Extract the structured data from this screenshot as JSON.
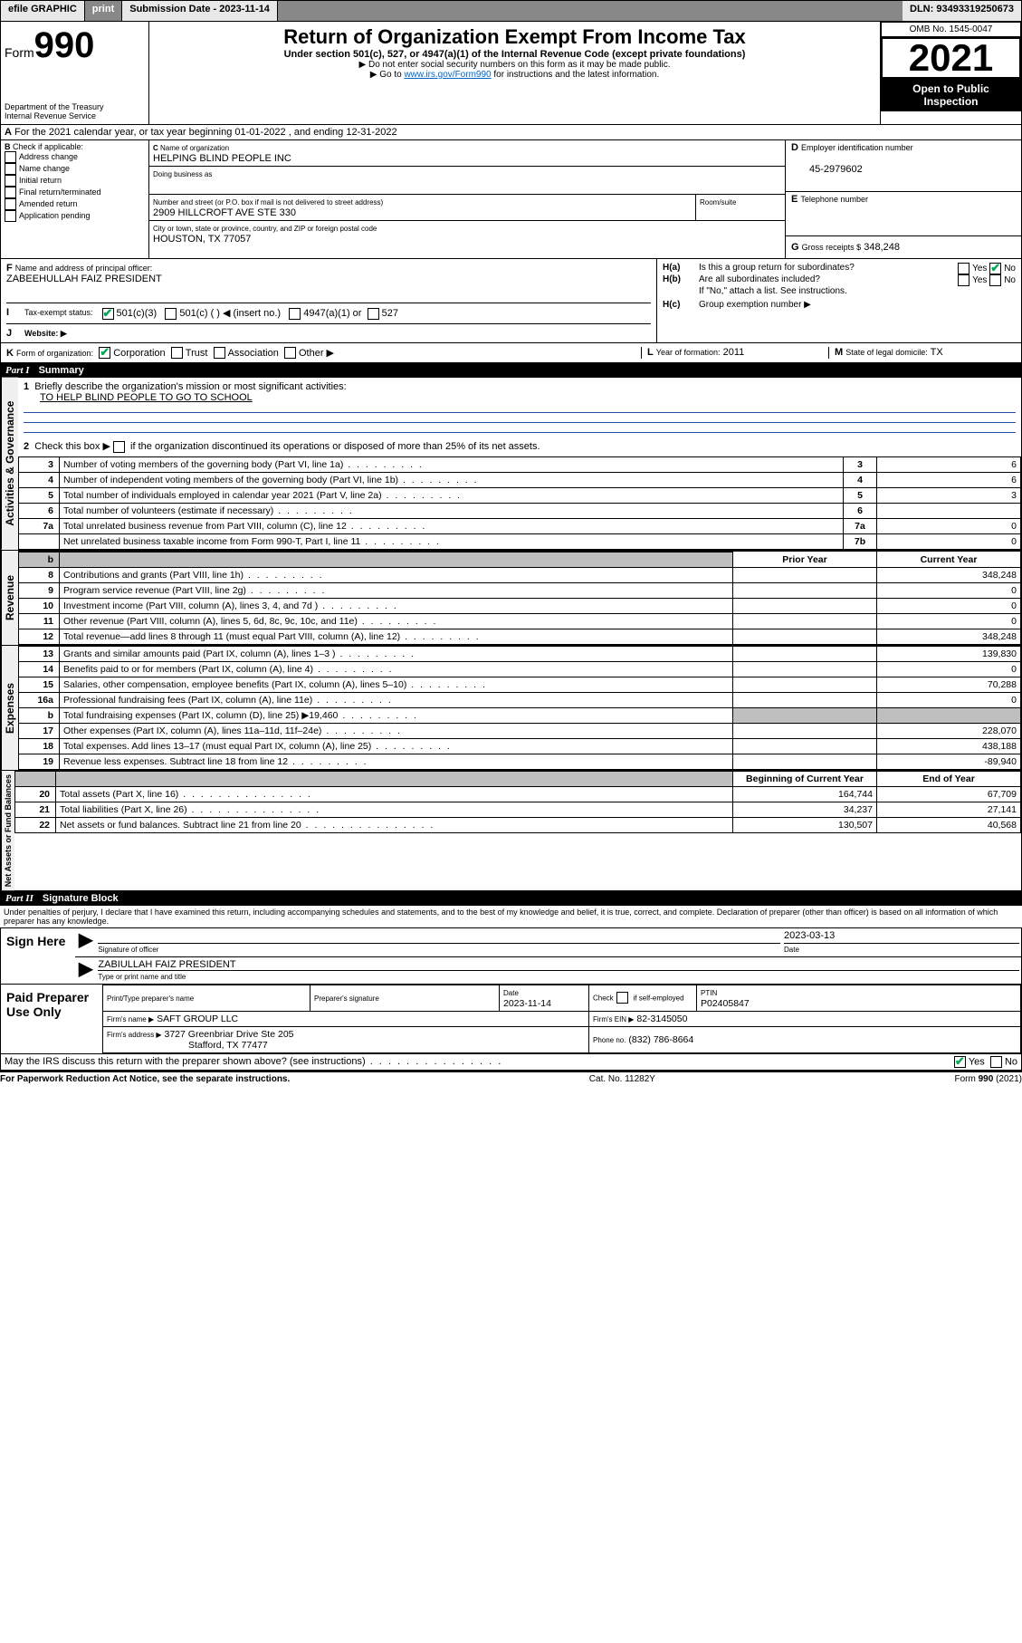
{
  "topbar": {
    "efile": "efile GRAPHIC",
    "print": "print",
    "sub_label": "Submission Date - 2023-11-14",
    "dln": "DLN: 93493319250673"
  },
  "header": {
    "form_word": "Form",
    "form_num": "990",
    "title": "Return of Organization Exempt From Income Tax",
    "subtitle": "Under section 501(c), 527, or 4947(a)(1) of the Internal Revenue Code (except private foundations)",
    "note1": "▶ Do not enter social security numbers on this form as it may be made public.",
    "note2_pre": "▶ Go to ",
    "note2_link": "www.irs.gov/Form990",
    "note2_post": " for instructions and the latest information.",
    "dept": "Department of the Treasury",
    "irs": "Internal Revenue Service",
    "omb": "OMB No. 1545-0047",
    "year": "2021",
    "open": "Open to Public Inspection"
  },
  "A": {
    "line": "For the 2021 calendar year, or tax year beginning 01-01-2022   , and ending 12-31-2022",
    "prefix": "A"
  },
  "B": {
    "label": "Check if applicable:",
    "prefix": "B",
    "items": [
      "Address change",
      "Name change",
      "Initial return",
      "Final return/terminated",
      "Amended return",
      "Application pending"
    ]
  },
  "C": {
    "name_label": "Name of organization",
    "name": "HELPING BLIND PEOPLE INC",
    "dba_label": "Doing business as",
    "addr_label": "Number and street (or P.O. box if mail is not delivered to street address)",
    "room_label": "Room/suite",
    "addr": "2909 HILLCROFT AVE STE 330",
    "city_label": "City or town, state or province, country, and ZIP or foreign postal code",
    "city": "HOUSTON, TX  77057",
    "prefix": "C"
  },
  "D": {
    "label": "Employer identification number",
    "value": "45-2979602",
    "prefix": "D"
  },
  "E": {
    "label": "Telephone number",
    "prefix": "E"
  },
  "G": {
    "label": "Gross receipts $",
    "value": "348,248",
    "prefix": "G"
  },
  "F": {
    "label": "Name and address of principal officer:",
    "value": "ZABEEHULLAH FAIZ PRESIDENT",
    "prefix": "F"
  },
  "H": {
    "a_label": "Is this a group return for subordinates?",
    "a_prefix": "H(a)",
    "b_label": "Are all subordinates included?",
    "b_prefix": "H(b)",
    "b_note": "If \"No,\" attach a list. See instructions.",
    "c_label": "Group exemption number ▶",
    "c_prefix": "H(c)",
    "yes": "Yes",
    "no": "No"
  },
  "I": {
    "label": "Tax-exempt status:",
    "prefix": "I",
    "opts": [
      "501(c)(3)",
      "501(c) (  ) ◀ (insert no.)",
      "4947(a)(1) or",
      "527"
    ]
  },
  "J": {
    "label": "Website: ▶",
    "prefix": "J"
  },
  "K": {
    "label": "Form of organization:",
    "prefix": "K",
    "opts": [
      "Corporation",
      "Trust",
      "Association",
      "Other ▶"
    ]
  },
  "L": {
    "label": "Year of formation:",
    "value": "2011",
    "prefix": "L"
  },
  "M": {
    "label": "State of legal domicile:",
    "value": "TX",
    "prefix": "M"
  },
  "part1": {
    "header_num": "Part I",
    "header_title": "Summary",
    "q1": "Briefly describe the organization's mission or most significant activities:",
    "q1_ans": "TO HELP BLIND PEOPLE TO GO TO SCHOOL",
    "q2": "Check this box ▶",
    "q2_tail": "if the organization discontinued its operations or disposed of more than 25% of its net assets.",
    "vert_gov": "Activities & Governance",
    "vert_rev": "Revenue",
    "vert_exp": "Expenses",
    "vert_net": "Net Assets or Fund Balances",
    "col_prior": "Prior Year",
    "col_current": "Current Year",
    "col_begin": "Beginning of Current Year",
    "col_end": "End of Year"
  },
  "gov_rows": [
    {
      "n": "3",
      "t": "Number of voting members of the governing body (Part VI, line 1a)",
      "box": "3",
      "v": "6"
    },
    {
      "n": "4",
      "t": "Number of independent voting members of the governing body (Part VI, line 1b)",
      "box": "4",
      "v": "6"
    },
    {
      "n": "5",
      "t": "Total number of individuals employed in calendar year 2021 (Part V, line 2a)",
      "box": "5",
      "v": "3"
    },
    {
      "n": "6",
      "t": "Total number of volunteers (estimate if necessary)",
      "box": "6",
      "v": ""
    },
    {
      "n": "7a",
      "t": "Total unrelated business revenue from Part VIII, column (C), line 12",
      "box": "7a",
      "v": "0"
    },
    {
      "n": "",
      "t": "Net unrelated business taxable income from Form 990-T, Part I, line 11",
      "box": "7b",
      "v": "0"
    }
  ],
  "rev_rows": [
    {
      "n": "8",
      "t": "Contributions and grants (Part VIII, line 1h)",
      "p": "",
      "c": "348,248"
    },
    {
      "n": "9",
      "t": "Program service revenue (Part VIII, line 2g)",
      "p": "",
      "c": "0"
    },
    {
      "n": "10",
      "t": "Investment income (Part VIII, column (A), lines 3, 4, and 7d )",
      "p": "",
      "c": "0"
    },
    {
      "n": "11",
      "t": "Other revenue (Part VIII, column (A), lines 5, 6d, 8c, 9c, 10c, and 11e)",
      "p": "",
      "c": "0"
    },
    {
      "n": "12",
      "t": "Total revenue—add lines 8 through 11 (must equal Part VIII, column (A), line 12)",
      "p": "",
      "c": "348,248"
    }
  ],
  "exp_rows": [
    {
      "n": "13",
      "t": "Grants and similar amounts paid (Part IX, column (A), lines 1–3 )",
      "p": "",
      "c": "139,830"
    },
    {
      "n": "14",
      "t": "Benefits paid to or for members (Part IX, column (A), line 4)",
      "p": "",
      "c": "0"
    },
    {
      "n": "15",
      "t": "Salaries, other compensation, employee benefits (Part IX, column (A), lines 5–10)",
      "p": "",
      "c": "70,288"
    },
    {
      "n": "16a",
      "t": "Professional fundraising fees (Part IX, column (A), line 11e)",
      "p": "",
      "c": "0"
    },
    {
      "n": "b",
      "t": "Total fundraising expenses (Part IX, column (D), line 25) ▶19,460",
      "p": "grey",
      "c": "grey"
    },
    {
      "n": "17",
      "t": "Other expenses (Part IX, column (A), lines 11a–11d, 11f–24e)",
      "p": "",
      "c": "228,070"
    },
    {
      "n": "18",
      "t": "Total expenses. Add lines 13–17 (must equal Part IX, column (A), line 25)",
      "p": "",
      "c": "438,188"
    },
    {
      "n": "19",
      "t": "Revenue less expenses. Subtract line 18 from line 12",
      "p": "",
      "c": "-89,940"
    }
  ],
  "net_rows": [
    {
      "n": "20",
      "t": "Total assets (Part X, line 16)",
      "p": "164,744",
      "c": "67,709"
    },
    {
      "n": "21",
      "t": "Total liabilities (Part X, line 26)",
      "p": "34,237",
      "c": "27,141"
    },
    {
      "n": "22",
      "t": "Net assets or fund balances. Subtract line 21 from line 20",
      "p": "130,507",
      "c": "40,568"
    }
  ],
  "part2": {
    "header_num": "Part II",
    "header_title": "Signature Block",
    "decl": "Under penalties of perjury, I declare that I have examined this return, including accompanying schedules and statements, and to the best of my knowledge and belief, it is true, correct, and complete. Declaration of preparer (other than officer) is based on all information of which preparer has any knowledge."
  },
  "sign": {
    "left": "Sign Here",
    "sig_label": "Signature of officer",
    "date_label": "Date",
    "date": "2023-03-13",
    "name": "ZABIULLAH FAIZ  PRESIDENT",
    "name_label": "Type or print name and title"
  },
  "paid": {
    "left": "Paid Preparer Use Only",
    "col1": "Print/Type preparer's name",
    "col2": "Preparer's signature",
    "col3_label": "Date",
    "col3": "2023-11-14",
    "col4_label": "Check",
    "col4_tail": "if self-employed",
    "col5_label": "PTIN",
    "col5": "P02405847",
    "firm_name_label": "Firm's name    ▶",
    "firm_name": "SAFT GROUP LLC",
    "firm_ein_label": "Firm's EIN ▶",
    "firm_ein": "82-3145050",
    "firm_addr_label": "Firm's address ▶",
    "firm_addr1": "3727 Greenbriar Drive Ste 205",
    "firm_addr2": "Stafford, TX  77477",
    "phone_label": "Phone no.",
    "phone": "(832) 786-8664"
  },
  "bottom": {
    "q": "May the IRS discuss this return with the preparer shown above? (see instructions)",
    "yes": "Yes",
    "no": "No"
  },
  "footer": {
    "left": "For Paperwork Reduction Act Notice, see the separate instructions.",
    "mid": "Cat. No. 11282Y",
    "right_pre": "Form ",
    "right_form": "990",
    "right_post": " (2021)"
  }
}
